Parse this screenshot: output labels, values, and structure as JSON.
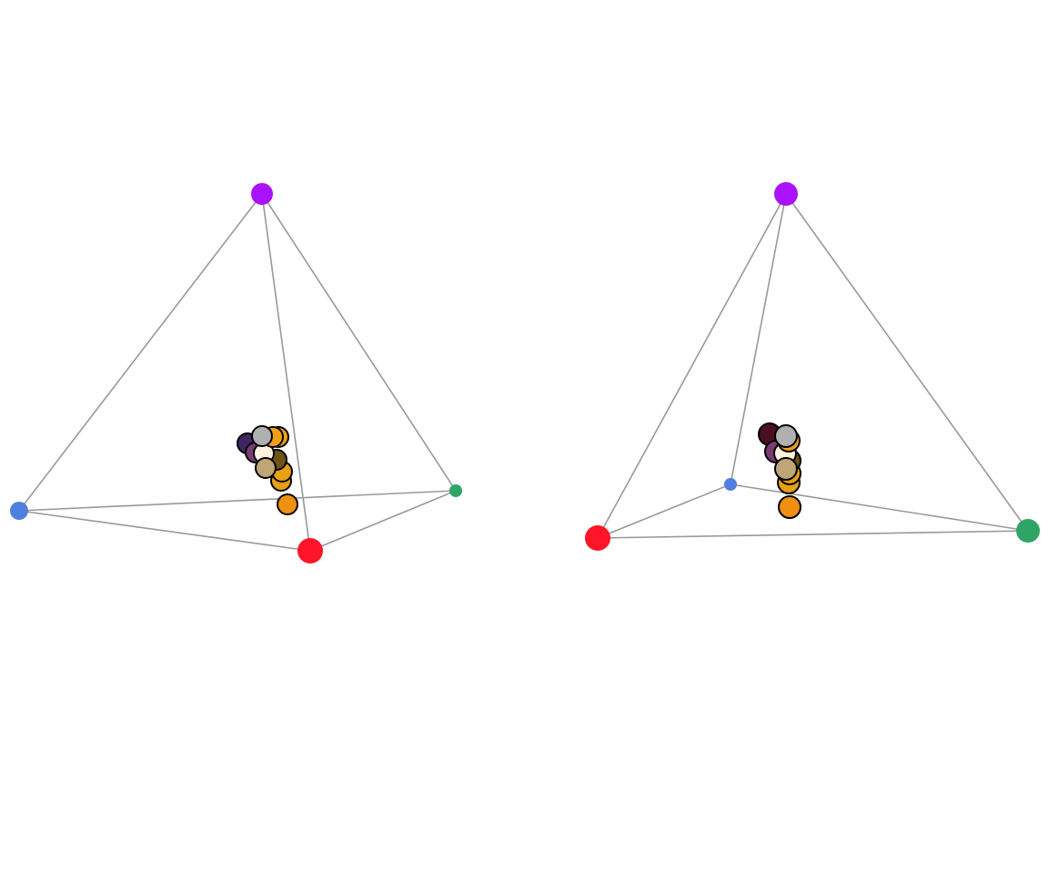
{
  "chart_data": [
    {
      "type": "scatter",
      "view": "left",
      "vertices": [
        {
          "name": "top",
          "color": "#aa11ff"
        },
        {
          "name": "left",
          "color": "#4f80e0"
        },
        {
          "name": "right",
          "color": "#2ea565"
        },
        {
          "name": "front",
          "color": "#ff1428"
        }
      ],
      "points": [
        {
          "color": "#f09010"
        },
        {
          "color": "#e8a015"
        },
        {
          "color": "#e8a015"
        },
        {
          "color": "#f0a015"
        },
        {
          "color": "#6e5410"
        },
        {
          "color": "#3e2660"
        },
        {
          "color": "#7a3d72"
        },
        {
          "color": "#fff3e0"
        },
        {
          "color": "#bfa677"
        },
        {
          "color": "#f0a015"
        },
        {
          "color": "#b0b0b0"
        }
      ]
    },
    {
      "type": "scatter",
      "view": "right",
      "vertices": [
        {
          "name": "top",
          "color": "#aa11ff"
        },
        {
          "name": "back",
          "color": "#4f80e0"
        },
        {
          "name": "right",
          "color": "#2ea565"
        },
        {
          "name": "left",
          "color": "#ff1428"
        }
      ],
      "points": [
        {
          "color": "#f09010"
        },
        {
          "color": "#e8a015"
        },
        {
          "color": "#e8a015"
        },
        {
          "color": "#f0a015"
        },
        {
          "color": "#6e5410"
        },
        {
          "color": "#4a0f22"
        },
        {
          "color": "#7a3d72"
        },
        {
          "color": "#fff3e0"
        },
        {
          "color": "#bfa677"
        },
        {
          "color": "#f0a015"
        },
        {
          "color": "#b0b0b0"
        }
      ]
    }
  ]
}
